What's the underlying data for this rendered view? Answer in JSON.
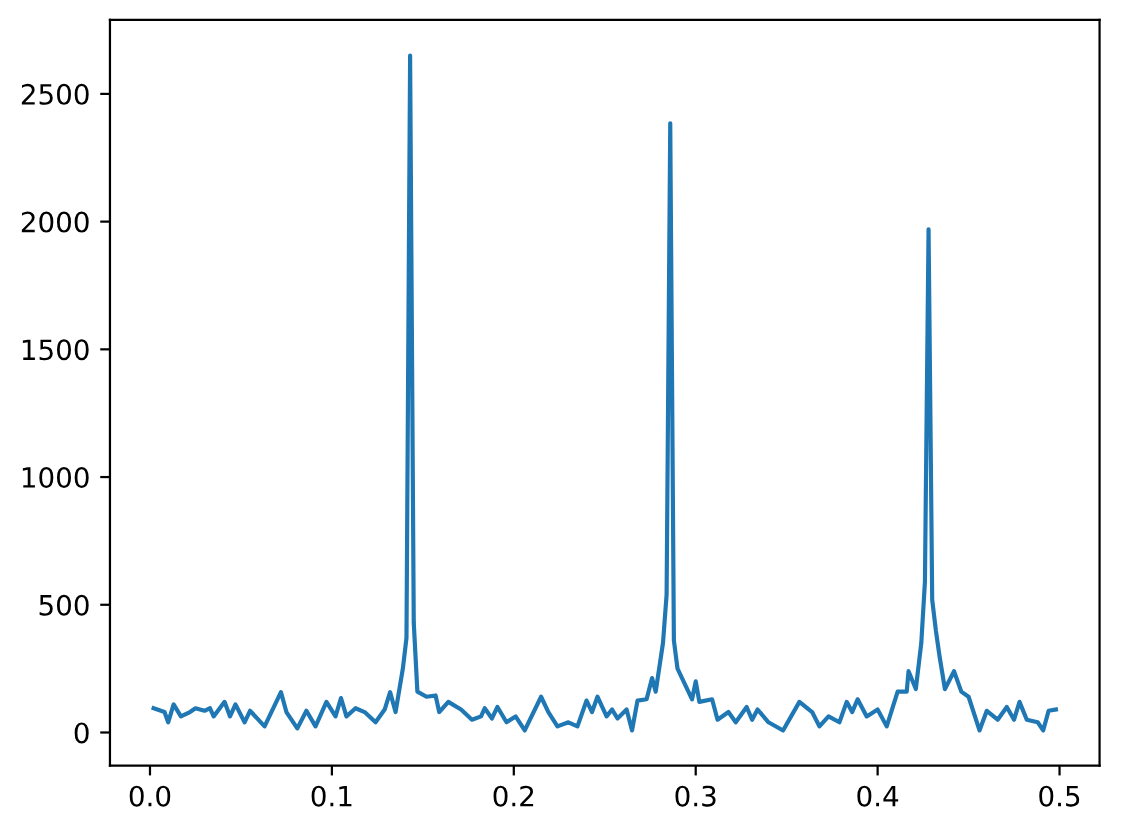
{
  "chart_data": {
    "type": "line",
    "x": [
      0.002,
      0.008,
      0.01,
      0.013,
      0.017,
      0.022,
      0.025,
      0.03,
      0.033,
      0.035,
      0.041,
      0.044,
      0.047,
      0.052,
      0.055,
      0.063,
      0.072,
      0.075,
      0.081,
      0.086,
      0.091,
      0.097,
      0.102,
      0.105,
      0.108,
      0.113,
      0.118,
      0.124,
      0.129,
      0.132,
      0.135,
      0.139,
      0.141,
      0.143,
      0.145,
      0.147,
      0.152,
      0.157,
      0.159,
      0.164,
      0.171,
      0.177,
      0.182,
      0.184,
      0.188,
      0.191,
      0.196,
      0.201,
      0.206,
      0.215,
      0.219,
      0.224,
      0.23,
      0.235,
      0.24,
      0.243,
      0.246,
      0.251,
      0.254,
      0.257,
      0.262,
      0.265,
      0.268,
      0.273,
      0.276,
      0.278,
      0.282,
      0.284,
      0.286,
      0.288,
      0.29,
      0.298,
      0.3,
      0.302,
      0.309,
      0.312,
      0.318,
      0.322,
      0.328,
      0.331,
      0.334,
      0.34,
      0.348,
      0.357,
      0.364,
      0.368,
      0.373,
      0.379,
      0.383,
      0.386,
      0.389,
      0.394,
      0.4,
      0.405,
      0.411,
      0.416,
      0.417,
      0.421,
      0.424,
      0.426,
      0.428,
      0.43,
      0.432,
      0.434,
      0.437,
      0.442,
      0.446,
      0.45,
      0.456,
      0.46,
      0.466,
      0.471,
      0.475,
      0.478,
      0.482,
      0.488,
      0.491,
      0.494,
      0.498
    ],
    "series": [
      {
        "color": "#1f77b4",
        "values": [
          95,
          80,
          40,
          110,
          63,
          80,
          95,
          85,
          95,
          63,
          120,
          63,
          110,
          40,
          85,
          24,
          158,
          80,
          16,
          85,
          24,
          120,
          63,
          135,
          63,
          95,
          80,
          40,
          90,
          158,
          80,
          250,
          370,
          2650,
          430,
          160,
          140,
          145,
          80,
          120,
          90,
          50,
          63,
          95,
          55,
          100,
          40,
          63,
          8,
          140,
          80,
          24,
          40,
          24,
          125,
          80,
          140,
          63,
          90,
          55,
          90,
          8,
          125,
          130,
          213,
          160,
          350,
          540,
          2385,
          360,
          250,
          130,
          200,
          120,
          130,
          50,
          80,
          40,
          100,
          50,
          90,
          40,
          8,
          120,
          80,
          24,
          63,
          40,
          120,
          80,
          130,
          63,
          90,
          24,
          160,
          160,
          240,
          170,
          350,
          590,
          1970,
          520,
          400,
          300,
          170,
          240,
          160,
          140,
          8,
          85,
          50,
          100,
          50,
          120,
          50,
          40,
          8,
          85,
          90
        ]
      }
    ],
    "xlim": [
      -0.022,
      0.522
    ],
    "ylim": [
      -130,
      2790
    ],
    "xticks": [
      {
        "value": 0.0,
        "label": "0.0"
      },
      0.1,
      0.2,
      0.3,
      0.4,
      0.5
    ],
    "yticks": [
      0,
      500,
      1000,
      1500,
      2000,
      2500
    ],
    "grid": false,
    "legend": false
  }
}
